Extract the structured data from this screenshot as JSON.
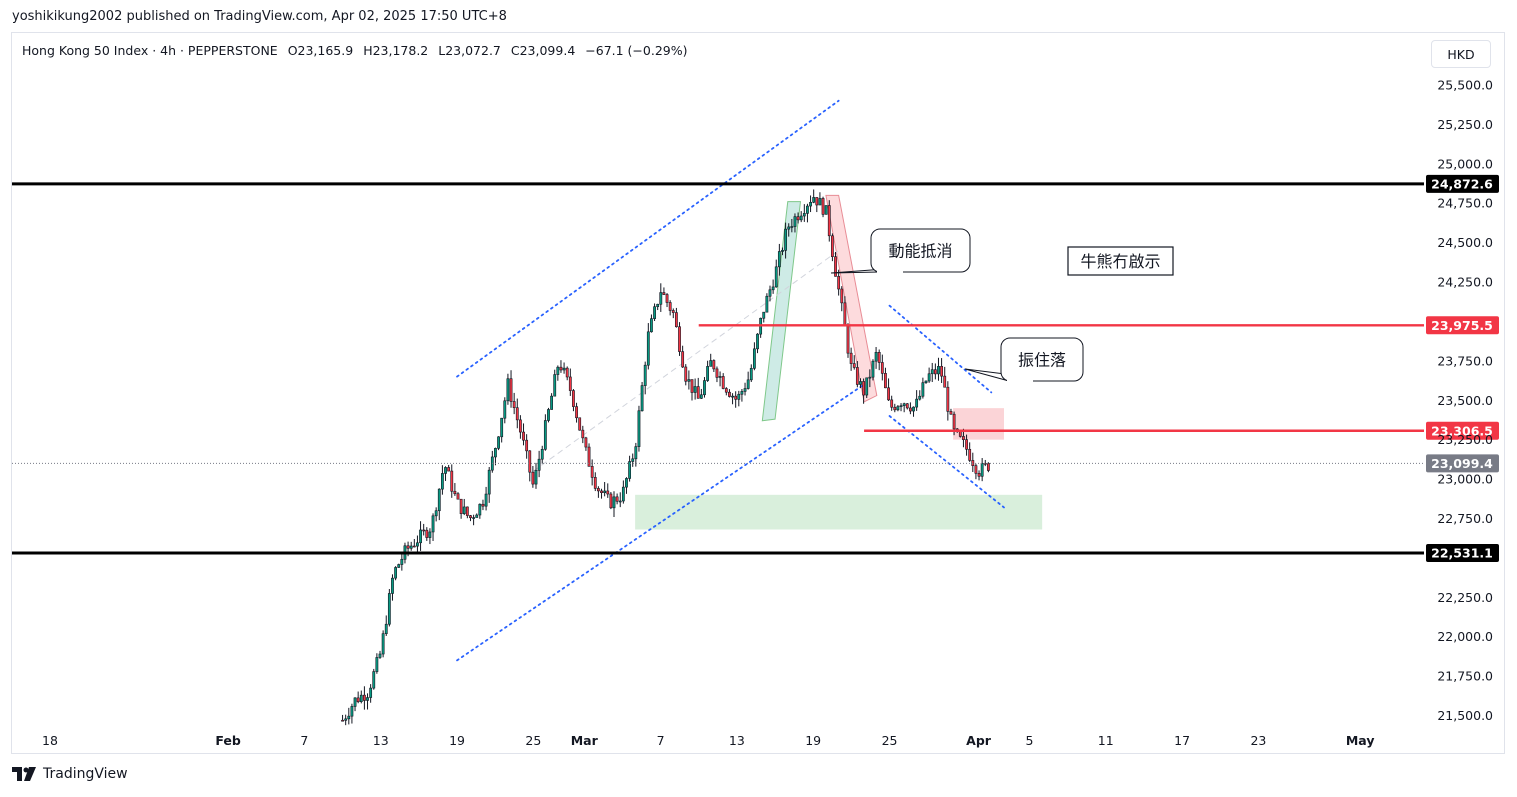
{
  "header": {
    "published": "yoshikikung2002 published on TradingView.com, Apr 02, 2025 17:50 UTC+8"
  },
  "legend": {
    "symbol": "Hong Kong 50 Index · 4h · PEPPERSTONE",
    "open": "O23,165.9",
    "high": "H23,178.2",
    "low": "L23,072.7",
    "close": "C23,099.4",
    "change": "−67.1 (−0.29%)"
  },
  "currency": "HKD",
  "footer": {
    "brand": "TradingView"
  },
  "chart_data": {
    "type": "candlestick",
    "ylim": [
      21450,
      25650
    ],
    "y_ticks": [
      "21,500.0",
      "21,750.0",
      "22,000.0",
      "22,250.0",
      "22,500.0",
      "22,750.0",
      "23,000.0",
      "23,250.0",
      "23,500.0",
      "23,750.0",
      "24,000.0",
      "24,250.0",
      "24,500.0",
      "24,750.0",
      "25,000.0",
      "25,250.0",
      "25,500.0"
    ],
    "y_tick_values": [
      21500,
      21750,
      22000,
      22250,
      22500,
      22750,
      23000,
      23250,
      23500,
      23750,
      24000,
      24250,
      24500,
      24750,
      25000,
      25250,
      25500
    ],
    "x_ticks": [
      {
        "label": "18",
        "date": "2025-01-18",
        "bold": false
      },
      {
        "label": "Feb",
        "date": "2025-02-01",
        "bold": true
      },
      {
        "label": "7",
        "date": "2025-02-07",
        "bold": false
      },
      {
        "label": "13",
        "date": "2025-02-13",
        "bold": false
      },
      {
        "label": "19",
        "date": "2025-02-19",
        "bold": false
      },
      {
        "label": "25",
        "date": "2025-02-25",
        "bold": false
      },
      {
        "label": "Mar",
        "date": "2025-03-01",
        "bold": true
      },
      {
        "label": "7",
        "date": "2025-03-07",
        "bold": false
      },
      {
        "label": "13",
        "date": "2025-03-13",
        "bold": false
      },
      {
        "label": "19",
        "date": "2025-03-19",
        "bold": false
      },
      {
        "label": "25",
        "date": "2025-03-25",
        "bold": false
      },
      {
        "label": "Apr",
        "date": "2025-04-01",
        "bold": true
      },
      {
        "label": "5",
        "date": "2025-04-05",
        "bold": false
      },
      {
        "label": "11",
        "date": "2025-04-11",
        "bold": false
      },
      {
        "label": "17",
        "date": "2025-04-17",
        "bold": false
      },
      {
        "label": "23",
        "date": "2025-04-23",
        "bold": false
      },
      {
        "label": "May",
        "date": "2025-05-01",
        "bold": true
      }
    ],
    "price_path": [
      [
        "2025-02-10",
        21470
      ],
      [
        "2025-02-11",
        21600
      ],
      [
        "2025-02-12",
        21650
      ],
      [
        "2025-02-13",
        21900
      ],
      [
        "2025-02-14",
        22400
      ],
      [
        "2025-02-15",
        22550
      ],
      [
        "2025-02-17",
        22700
      ],
      [
        "2025-02-18",
        23100
      ],
      [
        "2025-02-19",
        22850
      ],
      [
        "2025-02-20",
        22750
      ],
      [
        "2025-02-21",
        22850
      ],
      [
        "2025-02-22",
        23200
      ],
      [
        "2025-02-23",
        23600
      ],
      [
        "2025-02-24",
        23300
      ],
      [
        "2025-02-25",
        22950
      ],
      [
        "2025-02-26",
        23350
      ],
      [
        "2025-02-27",
        23750
      ],
      [
        "2025-02-28",
        23550
      ],
      [
        "2025-03-01",
        23200
      ],
      [
        "2025-03-02",
        22950
      ],
      [
        "2025-03-03",
        22850
      ],
      [
        "2025-03-04",
        22900
      ],
      [
        "2025-03-05",
        23200
      ],
      [
        "2025-03-06",
        23900
      ],
      [
        "2025-03-07",
        24200
      ],
      [
        "2025-03-08",
        24050
      ],
      [
        "2025-03-09",
        23650
      ],
      [
        "2025-03-10",
        23500
      ],
      [
        "2025-03-11",
        23750
      ],
      [
        "2025-03-12",
        23600
      ],
      [
        "2025-03-13",
        23500
      ],
      [
        "2025-03-14",
        23650
      ],
      [
        "2025-03-15",
        24050
      ],
      [
        "2025-03-16",
        24300
      ],
      [
        "2025-03-17",
        24600
      ],
      [
        "2025-03-18",
        24700
      ],
      [
        "2025-03-19",
        24800
      ],
      [
        "2025-03-20",
        24700
      ],
      [
        "2025-03-21",
        24200
      ],
      [
        "2025-03-22",
        23700
      ],
      [
        "2025-03-23",
        23550
      ],
      [
        "2025-03-24",
        23800
      ],
      [
        "2025-03-25",
        23450
      ],
      [
        "2025-03-26",
        23500
      ],
      [
        "2025-03-27",
        23450
      ],
      [
        "2025-03-28",
        23650
      ],
      [
        "2025-03-29",
        23700
      ],
      [
        "2025-03-30",
        23300
      ],
      [
        "2025-03-31",
        23200
      ],
      [
        "2025-04-01",
        23050
      ],
      [
        "2025-04-02",
        23099.4
      ]
    ],
    "last_price": "23,099.4",
    "levels": [
      {
        "price": 24872.6,
        "label": "24,872.6",
        "color": "#000000"
      },
      {
        "price": 23975.5,
        "label": "23,975.5",
        "color": "#f23645"
      },
      {
        "price": 23306.5,
        "label": "23,306.5",
        "color": "#f23645"
      },
      {
        "price": 22531.1,
        "label": "22,531.1",
        "color": "#000000"
      }
    ],
    "annotations": [
      "動能抵消",
      "振住落",
      "牛熊冇啟示"
    ],
    "colors": {
      "up": "#089981",
      "down": "#f23645",
      "wick": "#131722",
      "channel": "#2962ff"
    }
  }
}
